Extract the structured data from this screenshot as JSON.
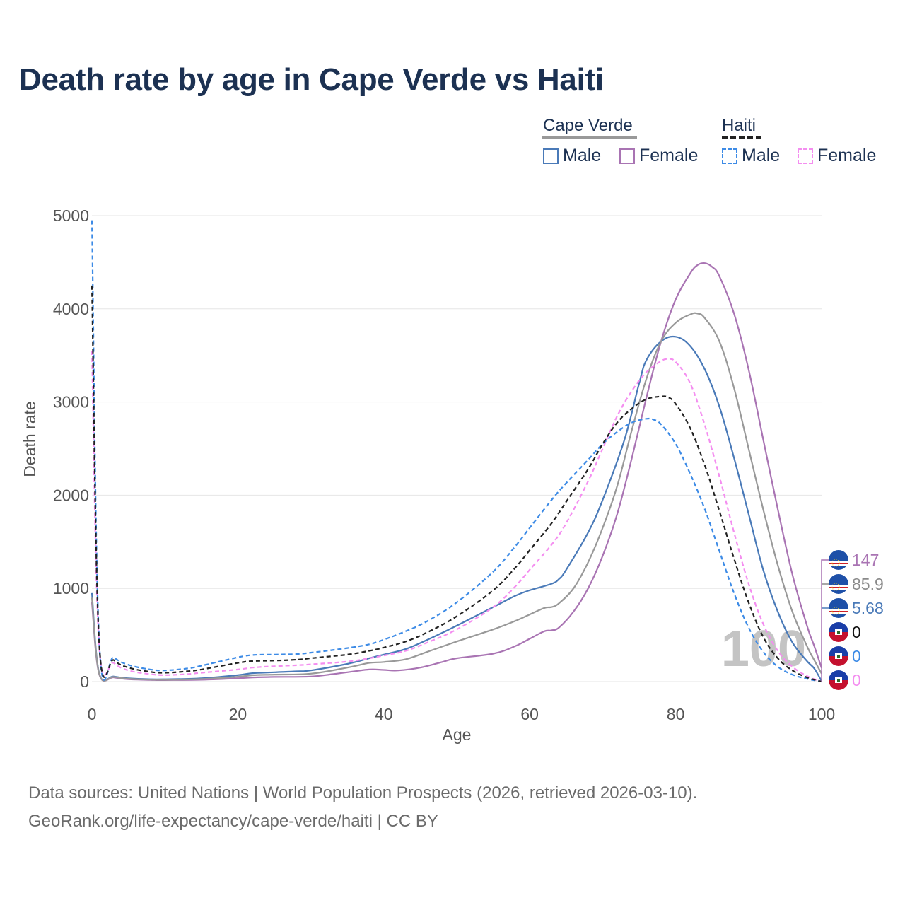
{
  "title": "Death rate by age in Cape Verde vs Haiti",
  "legend": {
    "groups": [
      {
        "label": "Cape Verde",
        "underline_color": "#999999",
        "underline_style": "solid",
        "items": [
          {
            "label": "Male",
            "color": "#4a7ab8",
            "style": "solid"
          },
          {
            "label": "Female",
            "color": "#a974b3",
            "style": "solid"
          }
        ]
      },
      {
        "label": "Haiti",
        "underline_color": "#222222",
        "underline_style": "dashed",
        "items": [
          {
            "label": "Male",
            "color": "#3d8be6",
            "style": "dashed"
          },
          {
            "label": "Female",
            "color": "#f48ef0",
            "style": "dashed"
          }
        ]
      }
    ]
  },
  "end_labels": [
    {
      "value": "147",
      "color": "#a974b3",
      "flag": "cape-verde-flag-icon"
    },
    {
      "value": "85.9",
      "color": "#8a8a8a",
      "flag": "cape-verde-flag-icon"
    },
    {
      "value": "5.68",
      "color": "#4a7ab8",
      "flag": "cape-verde-flag-icon"
    },
    {
      "value": "0",
      "color": "#111111",
      "flag": "haiti-flag-icon"
    },
    {
      "value": "0",
      "color": "#3d8be6",
      "flag": "haiti-flag-icon"
    },
    {
      "value": "0",
      "color": "#f48ef0",
      "flag": "haiti-flag-icon"
    }
  ],
  "year_watermark": "100",
  "source_lines": [
    "Data sources: United Nations | World Population Prospects (2026, retrieved 2026-03-10).",
    "GeoRank.org/life-expectancy/cape-verde/haiti | CC BY"
  ],
  "chart_data": {
    "type": "line",
    "title": "Death rate by age in Cape Verde vs Haiti",
    "xlabel": "Age",
    "ylabel": "Death rate",
    "xlim": [
      0,
      100
    ],
    "ylim": [
      0,
      5000
    ],
    "xticks": [
      0,
      20,
      40,
      60,
      80,
      100
    ],
    "yticks": [
      0,
      1000,
      2000,
      3000,
      4000,
      5000
    ],
    "grid": true,
    "series": [
      {
        "name": "Cape Verde Male",
        "color": "#4a7ab8",
        "dash": "solid",
        "points": [
          [
            0,
            950
          ],
          [
            1,
            90
          ],
          [
            3,
            55
          ],
          [
            5,
            35
          ],
          [
            8,
            25
          ],
          [
            10,
            25
          ],
          [
            15,
            35
          ],
          [
            20,
            70
          ],
          [
            22,
            90
          ],
          [
            25,
            100
          ],
          [
            28,
            110
          ],
          [
            30,
            120
          ],
          [
            35,
            190
          ],
          [
            38,
            250
          ],
          [
            40,
            290
          ],
          [
            43,
            350
          ],
          [
            46,
            450
          ],
          [
            50,
            600
          ],
          [
            55,
            800
          ],
          [
            58,
            920
          ],
          [
            60,
            980
          ],
          [
            63,
            1050
          ],
          [
            64,
            1100
          ],
          [
            65,
            1200
          ],
          [
            68,
            1600
          ],
          [
            70,
            1950
          ],
          [
            73,
            2600
          ],
          [
            75,
            3200
          ],
          [
            76,
            3450
          ],
          [
            78,
            3650
          ],
          [
            80,
            3700
          ],
          [
            82,
            3600
          ],
          [
            84,
            3350
          ],
          [
            86,
            2950
          ],
          [
            88,
            2400
          ],
          [
            90,
            1800
          ],
          [
            92,
            1200
          ],
          [
            94,
            750
          ],
          [
            96,
            420
          ],
          [
            98,
            220
          ],
          [
            99,
            140
          ],
          [
            100,
            6
          ]
        ]
      },
      {
        "name": "Cape Verde Female",
        "color": "#a974b3",
        "dash": "solid",
        "points": [
          [
            0,
            850
          ],
          [
            1,
            80
          ],
          [
            3,
            45
          ],
          [
            5,
            25
          ],
          [
            8,
            18
          ],
          [
            10,
            16
          ],
          [
            15,
            20
          ],
          [
            20,
            35
          ],
          [
            22,
            45
          ],
          [
            25,
            50
          ],
          [
            30,
            55
          ],
          [
            33,
            80
          ],
          [
            35,
            100
          ],
          [
            38,
            130
          ],
          [
            40,
            125
          ],
          [
            42,
            120
          ],
          [
            45,
            150
          ],
          [
            48,
            210
          ],
          [
            50,
            250
          ],
          [
            55,
            300
          ],
          [
            58,
            380
          ],
          [
            60,
            460
          ],
          [
            62,
            540
          ],
          [
            63,
            550
          ],
          [
            64,
            580
          ],
          [
            66,
            750
          ],
          [
            68,
            1000
          ],
          [
            70,
            1350
          ],
          [
            72,
            1800
          ],
          [
            74,
            2400
          ],
          [
            76,
            3050
          ],
          [
            78,
            3650
          ],
          [
            80,
            4100
          ],
          [
            82,
            4380
          ],
          [
            83,
            4470
          ],
          [
            84,
            4490
          ],
          [
            85,
            4450
          ],
          [
            86,
            4350
          ],
          [
            88,
            3950
          ],
          [
            90,
            3350
          ],
          [
            92,
            2600
          ],
          [
            94,
            1850
          ],
          [
            96,
            1150
          ],
          [
            98,
            600
          ],
          [
            99,
            380
          ],
          [
            100,
            147
          ]
        ]
      },
      {
        "name": "Cape Verde Both",
        "color": "#999999",
        "dash": "solid",
        "points": [
          [
            0,
            900
          ],
          [
            1,
            85
          ],
          [
            3,
            50
          ],
          [
            5,
            30
          ],
          [
            8,
            22
          ],
          [
            10,
            20
          ],
          [
            15,
            27
          ],
          [
            20,
            52
          ],
          [
            22,
            68
          ],
          [
            25,
            75
          ],
          [
            30,
            85
          ],
          [
            35,
            150
          ],
          [
            38,
            200
          ],
          [
            40,
            210
          ],
          [
            43,
            240
          ],
          [
            46,
            320
          ],
          [
            50,
            430
          ],
          [
            55,
            560
          ],
          [
            58,
            650
          ],
          [
            60,
            720
          ],
          [
            62,
            790
          ],
          [
            63,
            800
          ],
          [
            64,
            840
          ],
          [
            66,
            1000
          ],
          [
            68,
            1280
          ],
          [
            70,
            1650
          ],
          [
            72,
            2100
          ],
          [
            74,
            2700
          ],
          [
            76,
            3250
          ],
          [
            78,
            3650
          ],
          [
            80,
            3850
          ],
          [
            82,
            3940
          ],
          [
            83,
            3950
          ],
          [
            84,
            3900
          ],
          [
            86,
            3650
          ],
          [
            88,
            3150
          ],
          [
            90,
            2500
          ],
          [
            92,
            1850
          ],
          [
            94,
            1250
          ],
          [
            96,
            750
          ],
          [
            98,
            380
          ],
          [
            99,
            230
          ],
          [
            100,
            86
          ]
        ]
      },
      {
        "name": "Haiti Male",
        "color": "#3d8be6",
        "dash": "dashed",
        "points": [
          [
            0,
            4950
          ],
          [
            1,
            430
          ],
          [
            3,
            260
          ],
          [
            5,
            180
          ],
          [
            8,
            130
          ],
          [
            10,
            120
          ],
          [
            13,
            140
          ],
          [
            15,
            170
          ],
          [
            20,
            260
          ],
          [
            22,
            285
          ],
          [
            25,
            290
          ],
          [
            28,
            295
          ],
          [
            30,
            310
          ],
          [
            35,
            360
          ],
          [
            38,
            400
          ],
          [
            40,
            450
          ],
          [
            43,
            540
          ],
          [
            46,
            650
          ],
          [
            50,
            850
          ],
          [
            55,
            1180
          ],
          [
            58,
            1450
          ],
          [
            60,
            1650
          ],
          [
            63,
            1950
          ],
          [
            65,
            2130
          ],
          [
            68,
            2380
          ],
          [
            70,
            2550
          ],
          [
            72,
            2680
          ],
          [
            74,
            2780
          ],
          [
            76,
            2820
          ],
          [
            77,
            2810
          ],
          [
            78,
            2760
          ],
          [
            80,
            2550
          ],
          [
            82,
            2230
          ],
          [
            84,
            1850
          ],
          [
            86,
            1400
          ],
          [
            88,
            950
          ],
          [
            90,
            580
          ],
          [
            92,
            320
          ],
          [
            94,
            160
          ],
          [
            96,
            75
          ],
          [
            98,
            30
          ],
          [
            100,
            0
          ]
        ]
      },
      {
        "name": "Haiti Female",
        "color": "#f48ef0",
        "dash": "dashed",
        "points": [
          [
            0,
            3550
          ],
          [
            1,
            380
          ],
          [
            3,
            200
          ],
          [
            5,
            120
          ],
          [
            8,
            80
          ],
          [
            10,
            70
          ],
          [
            13,
            80
          ],
          [
            15,
            95
          ],
          [
            20,
            130
          ],
          [
            22,
            150
          ],
          [
            25,
            165
          ],
          [
            28,
            175
          ],
          [
            30,
            185
          ],
          [
            35,
            215
          ],
          [
            38,
            250
          ],
          [
            40,
            280
          ],
          [
            43,
            330
          ],
          [
            46,
            420
          ],
          [
            50,
            560
          ],
          [
            55,
            800
          ],
          [
            58,
            1020
          ],
          [
            60,
            1200
          ],
          [
            63,
            1470
          ],
          [
            65,
            1700
          ],
          [
            68,
            2150
          ],
          [
            70,
            2500
          ],
          [
            72,
            2850
          ],
          [
            74,
            3120
          ],
          [
            76,
            3320
          ],
          [
            78,
            3440
          ],
          [
            79,
            3460
          ],
          [
            80,
            3430
          ],
          [
            82,
            3200
          ],
          [
            84,
            2750
          ],
          [
            86,
            2200
          ],
          [
            88,
            1600
          ],
          [
            90,
            1050
          ],
          [
            92,
            620
          ],
          [
            94,
            330
          ],
          [
            96,
            160
          ],
          [
            98,
            60
          ],
          [
            100,
            0
          ]
        ]
      },
      {
        "name": "Haiti Both",
        "color": "#222222",
        "dash": "dashed",
        "points": [
          [
            0,
            4250
          ],
          [
            1,
            410
          ],
          [
            3,
            230
          ],
          [
            5,
            150
          ],
          [
            8,
            105
          ],
          [
            10,
            95
          ],
          [
            13,
            110
          ],
          [
            15,
            130
          ],
          [
            20,
            200
          ],
          [
            22,
            220
          ],
          [
            25,
            225
          ],
          [
            28,
            235
          ],
          [
            30,
            250
          ],
          [
            35,
            290
          ],
          [
            38,
            330
          ],
          [
            40,
            365
          ],
          [
            43,
            430
          ],
          [
            46,
            530
          ],
          [
            50,
            700
          ],
          [
            55,
            980
          ],
          [
            58,
            1220
          ],
          [
            60,
            1410
          ],
          [
            63,
            1700
          ],
          [
            65,
            1930
          ],
          [
            68,
            2280
          ],
          [
            70,
            2550
          ],
          [
            72,
            2780
          ],
          [
            74,
            2930
          ],
          [
            76,
            3030
          ],
          [
            78,
            3060
          ],
          [
            79,
            3050
          ],
          [
            80,
            2980
          ],
          [
            82,
            2720
          ],
          [
            84,
            2320
          ],
          [
            86,
            1830
          ],
          [
            88,
            1320
          ],
          [
            90,
            850
          ],
          [
            92,
            480
          ],
          [
            94,
            250
          ],
          [
            96,
            120
          ],
          [
            98,
            45
          ],
          [
            100,
            0
          ]
        ]
      }
    ]
  }
}
